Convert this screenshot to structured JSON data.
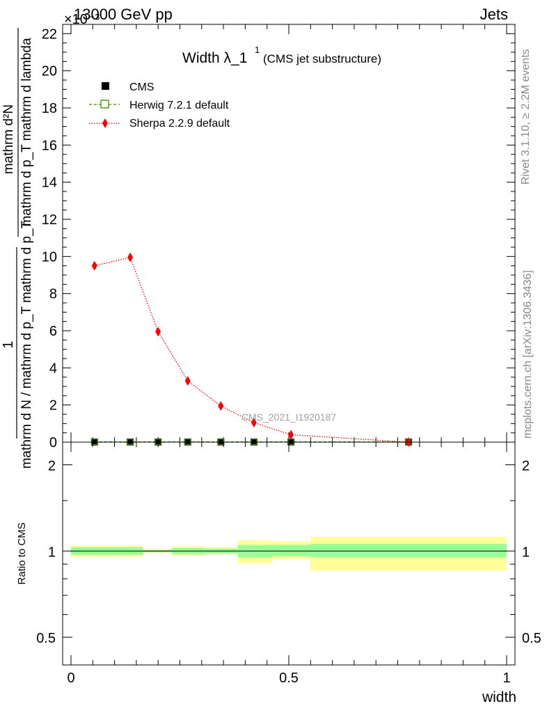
{
  "header": {
    "energy": "13000 GeV pp",
    "category": "Jets",
    "exponent": "×10⁻³",
    "title_main": "Width λ_1",
    "title_sup": "1",
    "title_note": "(CMS jet substructure)",
    "watermark": "CMS_2021_I1920187",
    "side_rivet": "Rivet 3.1.10, ≥ 2.2M events",
    "side_mcplots": "mcplots.cern.ch [arXiv:1306.3436]"
  },
  "chart_data": [
    {
      "type": "line",
      "panel": "main",
      "ylabel_numerator": "1",
      "ylabel_frac_num": "mathrm d²N",
      "ylabel_frac_den": "mathrm d p_T mathrm d lambda",
      "ylabel_frac_den_sub": "T",
      "ylabel_denominator": "mathrm d N / mathrm d p_T mathrm d p_T",
      "ylim": [
        0,
        22.5
      ],
      "xlim": [
        0,
        1
      ],
      "y_ticks": [
        "0",
        "2",
        "4",
        "6",
        "8",
        "10",
        "12",
        "14",
        "16",
        "18",
        "20",
        "22"
      ],
      "x": [
        0.054,
        0.136,
        0.2,
        0.268,
        0.344,
        0.42,
        0.505,
        0.775
      ],
      "series": [
        {
          "name": "CMS",
          "color": "#000000",
          "marker": "square",
          "values": [
            0.01,
            0.01,
            0.01,
            0.01,
            0.01,
            0.01,
            0.01,
            0.01
          ]
        },
        {
          "name": "Herwig 7.2.1 default",
          "color": "#3a8c00",
          "marker": "open-square",
          "line": "dashed",
          "values": [
            0.02,
            0.02,
            0.02,
            0.02,
            0.02,
            0.02,
            0.02,
            0.02
          ]
        },
        {
          "name": "Sherpa 2.2.9 default",
          "color": "#ff0000",
          "marker": "diamond",
          "line": "dotted",
          "values": [
            9.5,
            9.95,
            5.95,
            3.3,
            1.95,
            1.05,
            0.4,
            0.0
          ]
        }
      ],
      "legend_position": "top-left"
    },
    {
      "type": "area",
      "panel": "ratio",
      "ylabel": "Ratio to CMS",
      "xlabel": "width",
      "ylim": [
        0.4,
        2.4
      ],
      "y_scale": "log",
      "y_ticks": [
        "0.5",
        "1",
        "2"
      ],
      "x_ticks": [
        "0",
        "0.5",
        "1"
      ],
      "reference_line": 1,
      "bands": [
        {
          "x0": 0.0,
          "x1": 0.166,
          "stat_low": 0.97,
          "stat_high": 1.03,
          "total_low": 0.955,
          "total_high": 1.045
        },
        {
          "x0": 0.166,
          "x1": 0.232,
          "stat_low": 0.99,
          "stat_high": 1.01,
          "total_low": 0.985,
          "total_high": 1.015
        },
        {
          "x0": 0.232,
          "x1": 0.305,
          "stat_low": 0.975,
          "stat_high": 1.025,
          "total_low": 0.965,
          "total_high": 1.04
        },
        {
          "x0": 0.305,
          "x1": 0.383,
          "stat_low": 0.98,
          "stat_high": 1.02,
          "total_low": 0.975,
          "total_high": 1.03
        },
        {
          "x0": 0.383,
          "x1": 0.462,
          "stat_low": 0.95,
          "stat_high": 1.05,
          "total_low": 0.905,
          "total_high": 1.09
        },
        {
          "x0": 0.462,
          "x1": 0.55,
          "stat_low": 0.96,
          "stat_high": 1.05,
          "total_low": 0.935,
          "total_high": 1.08
        },
        {
          "x0": 0.55,
          "x1": 1.0,
          "stat_low": 0.95,
          "stat_high": 1.06,
          "total_low": 0.855,
          "total_high": 1.12
        }
      ],
      "stat_color": "#99ff99",
      "total_color": "#ffff99"
    }
  ]
}
